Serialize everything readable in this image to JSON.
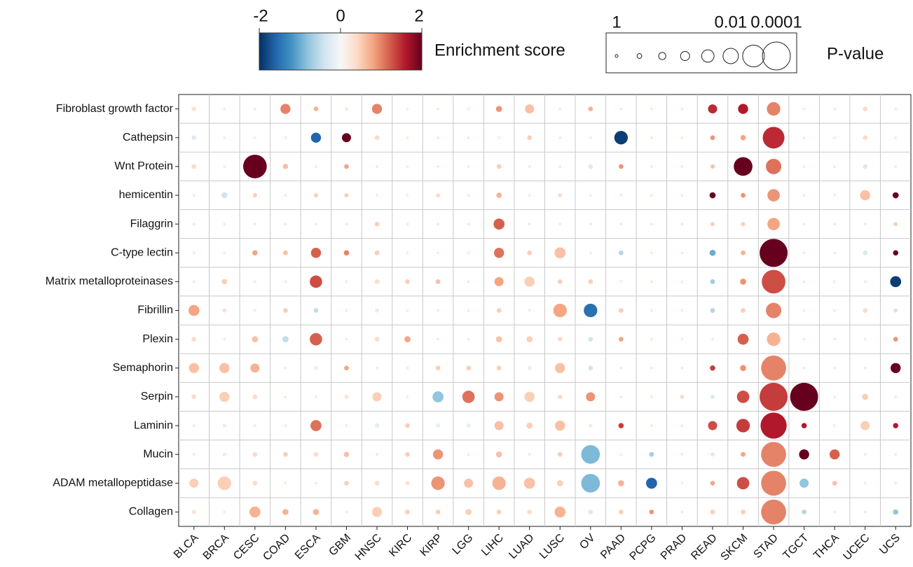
{
  "chart_data": {
    "type": "bubble",
    "rows": [
      "Fibroblast growth factor",
      "Cathepsin",
      "Wnt Protein",
      "hemicentin",
      "Filaggrin",
      "C-type lectin",
      "Matrix metalloproteinases",
      "Fibrillin",
      "Plexin",
      "Semaphorin",
      "Serpin",
      "Laminin",
      "Mucin",
      "ADAM metallopeptidase",
      "Collagen"
    ],
    "columns": [
      "BLCA",
      "BRCA",
      "CESC",
      "COAD",
      "ESCA",
      "GBM",
      "HNSC",
      "KIRC",
      "KIRP",
      "LGG",
      "LIHC",
      "LUAD",
      "LUSC",
      "OV",
      "PAAD",
      "PCPG",
      "PRAD",
      "READ",
      "SKCM",
      "STAD",
      "TGCT",
      "THCA",
      "UCEC",
      "UCS"
    ],
    "scores": [
      [
        0.3,
        0.2,
        0.2,
        1.0,
        0.7,
        0.2,
        1.0,
        0.2,
        0.2,
        0.2,
        0.9,
        0.6,
        0.2,
        0.7,
        0.2,
        0.2,
        0.2,
        1.5,
        1.6,
        1.0,
        0.2,
        0.2,
        0.4,
        0.2
      ],
      [
        -0.3,
        0.2,
        0.2,
        0.2,
        -1.6,
        2,
        0.4,
        0.2,
        0.2,
        0.2,
        0.2,
        0.5,
        0.2,
        0.2,
        -1.9,
        0.2,
        0.2,
        0.9,
        0.8,
        1.5,
        0.2,
        0.2,
        0.4,
        0.2
      ],
      [
        0.4,
        0.2,
        2,
        0.6,
        0.2,
        0.8,
        0.2,
        0.2,
        0.2,
        0.2,
        0.5,
        0.2,
        0.2,
        -0.3,
        0.9,
        0.2,
        0.2,
        0.6,
        2,
        1.1,
        0.2,
        0.2,
        -0.3,
        -0.2
      ],
      [
        0.2,
        -0.4,
        0.5,
        0.2,
        0.5,
        0.5,
        0.2,
        0.2,
        0.4,
        0.2,
        0.7,
        0.2,
        0.4,
        0.2,
        0.2,
        0.2,
        0.2,
        2,
        0.9,
        0.9,
        0.2,
        0.2,
        0.6,
        2
      ],
      [
        0.2,
        0.2,
        0.2,
        0.2,
        0.2,
        0.2,
        0.5,
        0.2,
        0.2,
        0.2,
        1.2,
        0.2,
        0.2,
        0.2,
        0.2,
        0.2,
        0.2,
        0.5,
        0.5,
        0.8,
        0.2,
        0.2,
        0.2,
        0.5
      ],
      [
        0.2,
        0.2,
        0.8,
        0.6,
        1.2,
        1.0,
        0.5,
        0.2,
        0.2,
        0.2,
        1.1,
        0.5,
        0.6,
        0.2,
        -0.6,
        0.2,
        0.2,
        -1,
        0.7,
        2,
        0.2,
        0.2,
        -0.3,
        2
      ],
      [
        0.2,
        0.5,
        0.2,
        0.2,
        1.3,
        0.2,
        0.4,
        0.5,
        0.6,
        0.2,
        0.8,
        0.5,
        0.5,
        0.5,
        0.2,
        0.2,
        0.2,
        -0.7,
        0.9,
        1.3,
        0.2,
        0.2,
        0.2,
        -1.9
      ],
      [
        0.8,
        0.3,
        0.2,
        0.5,
        -0.5,
        0.2,
        -0.2,
        0.2,
        0.2,
        0.2,
        0.5,
        0.2,
        0.8,
        -1.5,
        0.5,
        0.2,
        0.2,
        -0.6,
        0.5,
        1.0,
        0.2,
        0.2,
        0.4,
        -0.4
      ],
      [
        0.4,
        0.2,
        0.6,
        -0.5,
        1.2,
        0.2,
        0.4,
        0.8,
        0.2,
        0.2,
        0.6,
        0.5,
        0.4,
        -0.4,
        0.8,
        0.2,
        0.2,
        0.2,
        1.2,
        0.7,
        0.2,
        0.2,
        0.2,
        0.9
      ],
      [
        0.6,
        0.6,
        0.7,
        0.2,
        -0.2,
        0.8,
        0.2,
        0.2,
        0.5,
        0.5,
        0.5,
        -0.2,
        0.6,
        -0.4,
        0.2,
        0.2,
        0.2,
        1.4,
        0.9,
        1.0,
        0.2,
        0.2,
        0.2,
        2
      ],
      [
        0.4,
        0.5,
        0.4,
        0.2,
        0.2,
        0.3,
        0.5,
        0.2,
        -0.8,
        1.1,
        0.9,
        0.5,
        0.4,
        0.9,
        0.2,
        0.2,
        0.4,
        -0.3,
        1.3,
        1.4,
        2,
        0.2,
        0.5,
        0.2
      ],
      [
        0.2,
        0.2,
        0.2,
        0.2,
        1.1,
        0.2,
        -0.2,
        0.5,
        -0.2,
        -0.2,
        0.6,
        0.5,
        0.6,
        0.2,
        1.4,
        0.2,
        0.2,
        1.3,
        1.4,
        1.6,
        1.6,
        0.2,
        0.5,
        1.6
      ],
      [
        0.2,
        0.2,
        0.4,
        0.5,
        0.4,
        0.6,
        0.2,
        0.5,
        0.9,
        0.2,
        0.6,
        0.2,
        0.5,
        -0.9,
        0.2,
        -0.7,
        0.2,
        0.3,
        0.8,
        1.0,
        2,
        1.2,
        0.2,
        0.2
      ],
      [
        0.5,
        0.5,
        0.4,
        0.2,
        0.2,
        0.5,
        0.4,
        0.3,
        0.9,
        0.6,
        0.7,
        0.6,
        0.5,
        -0.9,
        0.7,
        -1.6,
        0.2,
        0.8,
        1.3,
        1.0,
        -0.8,
        0.6,
        0.2,
        0.2
      ],
      [
        0.3,
        0.2,
        0.7,
        0.7,
        0.7,
        0.2,
        0.5,
        0.5,
        0.5,
        0.5,
        0.5,
        0.4,
        0.7,
        -0.3,
        0.5,
        0.9,
        0.2,
        0.5,
        0.5,
        1.0,
        -0.6,
        0.2,
        0.2,
        -0.8
      ]
    ],
    "pvalues": [
      [
        0.5,
        1,
        1,
        0.07,
        0.5,
        0.7,
        0.07,
        1,
        1,
        1,
        0.3,
        0.1,
        1,
        0.5,
        1,
        1,
        1,
        0.1,
        0.07,
        0.02,
        1,
        1,
        0.5,
        1
      ],
      [
        0.5,
        1,
        1,
        1,
        0.07,
        0.1,
        0.5,
        1,
        1,
        1,
        1,
        0.5,
        1,
        1,
        0.02,
        1,
        1,
        0.5,
        0.4,
        0.001,
        1,
        1,
        0.5,
        1
      ],
      [
        0.5,
        1,
        0.0005,
        0.4,
        1,
        0.5,
        1,
        1,
        1,
        1,
        0.5,
        1,
        1,
        0.5,
        0.5,
        1,
        1,
        0.6,
        0.003,
        0.01,
        1,
        1,
        0.5,
        1
      ],
      [
        1,
        0.3,
        0.6,
        1,
        0.6,
        0.6,
        1,
        1,
        0.6,
        1,
        0.4,
        1,
        0.6,
        1,
        1,
        1,
        1,
        0.3,
        0.5,
        0.03,
        1,
        1,
        0.07,
        0.3
      ],
      [
        1,
        1,
        1,
        1,
        1,
        1,
        0.5,
        1,
        1,
        1,
        0.05,
        1,
        1,
        1,
        1,
        1,
        1,
        0.6,
        0.6,
        0.03,
        1,
        1,
        1,
        0.6
      ],
      [
        1,
        1,
        0.4,
        0.5,
        0.07,
        0.4,
        0.5,
        1,
        1,
        1,
        0.07,
        0.5,
        0.05,
        1,
        0.5,
        1,
        1,
        0.3,
        0.5,
        0.0001,
        1,
        1,
        0.5,
        0.4
      ],
      [
        1,
        0.4,
        1,
        1,
        0.03,
        1,
        0.5,
        0.5,
        0.5,
        1,
        0.1,
        0.07,
        0.5,
        0.5,
        1,
        1,
        1,
        0.5,
        0.3,
        0.0005,
        1,
        1,
        1,
        0.05
      ],
      [
        0.05,
        0.6,
        1,
        0.5,
        0.5,
        1,
        0.6,
        1,
        1,
        1,
        0.5,
        1,
        0.02,
        0.02,
        0.5,
        1,
        1,
        0.5,
        0.5,
        0.01,
        1,
        1,
        0.5,
        0.6
      ],
      [
        0.5,
        1,
        0.3,
        0.3,
        0.03,
        1,
        0.5,
        0.3,
        1,
        1,
        0.3,
        0.3,
        0.5,
        0.5,
        0.5,
        1,
        1,
        1,
        0.05,
        0.02,
        1,
        1,
        1,
        0.5
      ],
      [
        0.07,
        0.07,
        0.1,
        1,
        0.6,
        0.5,
        1,
        1,
        0.5,
        0.5,
        0.5,
        0.6,
        0.07,
        0.5,
        1,
        1,
        1,
        0.4,
        0.3,
        0.0003,
        1,
        1,
        1,
        0.07
      ],
      [
        0.5,
        0.07,
        0.5,
        1,
        1,
        0.6,
        0.1,
        1,
        0.05,
        0.03,
        0.1,
        0.07,
        0.5,
        0.1,
        1,
        1,
        0.6,
        0.6,
        0.03,
        0.0001,
        0.0001,
        1,
        0.3,
        1
      ],
      [
        1,
        0.7,
        1,
        1,
        0.05,
        1,
        0.5,
        0.5,
        0.6,
        0.6,
        0.1,
        0.3,
        0.07,
        0.7,
        0.4,
        1,
        1,
        0.1,
        0.02,
        0.0002,
        0.4,
        1,
        0.1,
        0.4
      ],
      [
        1,
        0.7,
        0.5,
        0.5,
        0.5,
        0.4,
        1,
        0.5,
        0.07,
        1,
        0.3,
        1,
        0.5,
        0.003,
        1,
        0.5,
        1,
        0.6,
        0.5,
        0.0003,
        0.07,
        0.07,
        1,
        1
      ],
      [
        0.1,
        0.02,
        0.5,
        1,
        1,
        0.5,
        0.5,
        0.6,
        0.02,
        0.1,
        0.02,
        0.05,
        0.3,
        0.003,
        0.3,
        0.05,
        1,
        0.5,
        0.03,
        0.0003,
        0.1,
        0.5,
        1,
        1
      ],
      [
        0.6,
        1,
        0.05,
        0.3,
        0.3,
        1,
        0.07,
        0.5,
        0.5,
        0.3,
        0.5,
        0.5,
        0.05,
        0.5,
        0.5,
        0.5,
        1,
        0.5,
        0.5,
        0.0003,
        0.5,
        1,
        1,
        0.4
      ]
    ],
    "colorbar": {
      "label": "Enrichment score",
      "clim": [
        -2,
        2
      ],
      "ticks": [
        -2,
        0,
        2
      ],
      "colormap": [
        "#053061",
        "#2166ac",
        "#4393c3",
        "#92c5de",
        "#d1e5f0",
        "#f7f7f7",
        "#fddbc7",
        "#f4a582",
        "#d6604d",
        "#b2182b",
        "#67001f"
      ]
    },
    "size_legend": {
      "label": "P-value",
      "values": [
        1,
        0.5,
        0.2,
        0.1,
        0.03,
        0.01,
        0.001,
        0.0001
      ],
      "ticks": [
        1,
        0.01,
        0.0001
      ]
    },
    "grid": true
  }
}
